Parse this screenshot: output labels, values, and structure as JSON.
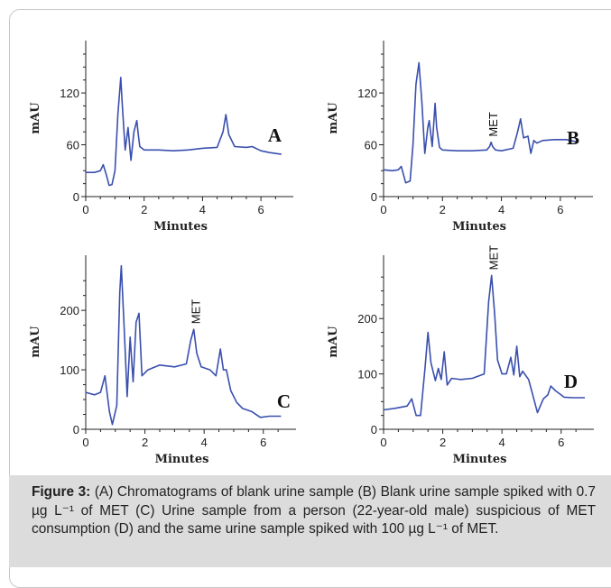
{
  "caption": {
    "label": "Figure 3:",
    "text": " (A) Chromatograms of blank urine sample (B) Blank urine sample spiked with 0.7 µg L⁻¹ of MET (C) Urine sample from a person (22-year-old male) suspicious of MET consumption (D) and the same urine sample spiked with 100 µg L⁻¹ of MET."
  },
  "colors": {
    "trace": "#3a4fae",
    "axis": "#222222",
    "caption_bg": "#dcdcdc"
  },
  "chart_data": [
    {
      "type": "line",
      "panel_label": "A",
      "xlabel": "Minutes",
      "ylabel": "mAU",
      "xlim": [
        0,
        6.8
      ],
      "ylim": [
        0,
        165
      ],
      "xticks": [
        0,
        2,
        4,
        6
      ],
      "yticks": [
        0,
        60,
        120
      ],
      "annotations": [],
      "series": [
        {
          "x": [
            0,
            0.3,
            0.5,
            0.6,
            0.7,
            0.8,
            0.9,
            1.0,
            1.1,
            1.2,
            1.25,
            1.35,
            1.45,
            1.55,
            1.65,
            1.75,
            1.8,
            1.85,
            2.0,
            2.5,
            3.0,
            3.5,
            4.0,
            4.5,
            4.7,
            4.8,
            4.9,
            5.1,
            5.5,
            5.7,
            6.0,
            6.3,
            6.7
          ],
          "y": [
            28,
            28,
            30,
            37,
            26,
            13,
            14,
            30,
            95,
            138,
            108,
            54,
            80,
            42,
            75,
            88,
            72,
            58,
            54,
            54,
            53,
            54,
            56,
            57,
            75,
            95,
            72,
            58,
            57,
            58,
            53,
            51,
            49
          ]
        }
      ]
    },
    {
      "type": "line",
      "panel_label": "B",
      "xlabel": "Minutes",
      "ylabel": "mAU",
      "xlim": [
        0,
        6.8
      ],
      "ylim": [
        0,
        165
      ],
      "xticks": [
        0,
        2,
        4,
        6
      ],
      "yticks": [
        0,
        60,
        120
      ],
      "annotations": [
        {
          "text": "MET",
          "x": 3.7
        }
      ],
      "series": [
        {
          "x": [
            0,
            0.3,
            0.5,
            0.6,
            0.75,
            0.9,
            1.0,
            1.1,
            1.2,
            1.3,
            1.4,
            1.5,
            1.55,
            1.65,
            1.75,
            1.8,
            1.9,
            2.0,
            2.5,
            3.0,
            3.5,
            3.6,
            3.65,
            3.7,
            3.8,
            4.0,
            4.4,
            4.55,
            4.65,
            4.75,
            4.9,
            5.0,
            5.1,
            5.2,
            5.4,
            5.8,
            6.2,
            6.6
          ],
          "y": [
            31,
            30,
            31,
            35,
            16,
            18,
            60,
            130,
            155,
            110,
            50,
            80,
            88,
            58,
            108,
            80,
            57,
            54,
            53,
            53,
            54,
            58,
            63,
            58,
            54,
            53,
            56,
            75,
            90,
            68,
            70,
            50,
            65,
            62,
            65,
            66,
            66,
            63
          ]
        }
      ]
    },
    {
      "type": "line",
      "panel_label": "C",
      "xlabel": "Minutes",
      "ylabel": "mAU",
      "xlim": [
        0,
        6.8
      ],
      "ylim": [
        0,
        270
      ],
      "xticks": [
        0,
        2,
        4,
        6
      ],
      "yticks": [
        0,
        100,
        200
      ],
      "annotations": [
        {
          "text": "MET",
          "x": 3.7
        }
      ],
      "series": [
        {
          "x": [
            0,
            0.3,
            0.5,
            0.65,
            0.8,
            0.9,
            1.05,
            1.15,
            1.2,
            1.3,
            1.4,
            1.5,
            1.6,
            1.7,
            1.8,
            1.9,
            2.1,
            2.5,
            3.0,
            3.4,
            3.55,
            3.65,
            3.75,
            3.9,
            4.2,
            4.4,
            4.55,
            4.65,
            4.75,
            4.9,
            5.1,
            5.3,
            5.6,
            5.9,
            6.2,
            6.6
          ],
          "y": [
            62,
            58,
            62,
            90,
            30,
            8,
            40,
            230,
            275,
            170,
            55,
            155,
            80,
            180,
            195,
            90,
            100,
            108,
            105,
            110,
            150,
            168,
            128,
            105,
            100,
            90,
            135,
            100,
            100,
            65,
            45,
            35,
            30,
            20,
            22,
            22
          ]
        }
      ]
    },
    {
      "type": "line",
      "panel_label": "D",
      "xlabel": "Minutes",
      "ylabel": "mAU",
      "xlim": [
        0,
        6.8
      ],
      "ylim": [
        0,
        290
      ],
      "xticks": [
        0,
        2,
        4,
        6
      ],
      "yticks": [
        0,
        100,
        200
      ],
      "annotations": [
        {
          "text": "MET",
          "x": 3.7
        }
      ],
      "series": [
        {
          "x": [
            0,
            0.4,
            0.8,
            0.95,
            1.1,
            1.25,
            1.4,
            1.5,
            1.6,
            1.75,
            1.85,
            1.95,
            2.05,
            2.15,
            2.3,
            2.6,
            3.0,
            3.4,
            3.55,
            3.65,
            3.75,
            3.85,
            4.0,
            4.15,
            4.3,
            4.4,
            4.5,
            4.6,
            4.7,
            4.9,
            5.0,
            5.2,
            5.4,
            5.55,
            5.65,
            5.8,
            6.1,
            6.4,
            6.8
          ],
          "y": [
            35,
            38,
            42,
            55,
            25,
            25,
            110,
            175,
            120,
            88,
            110,
            90,
            140,
            80,
            92,
            90,
            92,
            100,
            230,
            278,
            210,
            125,
            100,
            100,
            130,
            98,
            150,
            95,
            105,
            90,
            70,
            30,
            55,
            62,
            78,
            70,
            58,
            57,
            57
          ]
        }
      ]
    }
  ]
}
